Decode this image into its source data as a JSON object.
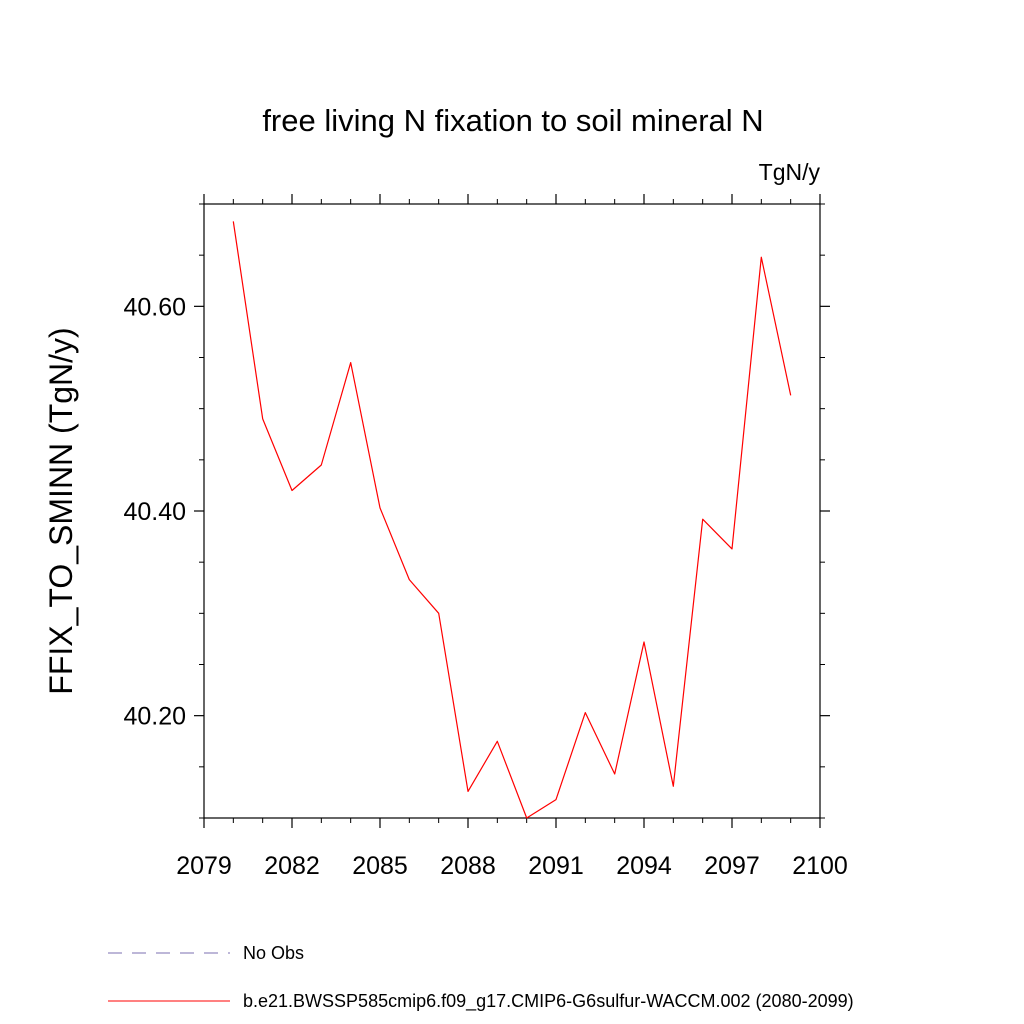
{
  "chart_data": {
    "type": "line",
    "title": "free living N fixation to soil mineral N",
    "units_label": "TgN/y",
    "ylabel": "FFIX_TO_SMINN  (TgN/y)",
    "xlabel": "",
    "xlim": [
      2079,
      2100
    ],
    "ylim": [
      40.1,
      40.7
    ],
    "x_ticks": [
      2079,
      2082,
      2085,
      2088,
      2091,
      2094,
      2097,
      2100
    ],
    "x_tick_labels": [
      "2079",
      "2082",
      "2085",
      "2088",
      "2091",
      "2094",
      "2097",
      "2100"
    ],
    "y_ticks": [
      40.2,
      40.4,
      40.6
    ],
    "y_tick_labels": [
      "40.20",
      "40.40",
      "40.60"
    ],
    "y_minor_step": 0.05,
    "x_minor_step": 1,
    "grid": false,
    "series": [
      {
        "name": "b.e21.BWSSP585cmip6.f09_g17.CMIP6-G6sulfur-WACCM.002 (2080-2099)",
        "color": "#ff0000",
        "style": "solid",
        "x": [
          2080,
          2081,
          2082,
          2083,
          2084,
          2085,
          2086,
          2087,
          2088,
          2089,
          2090,
          2091,
          2092,
          2093,
          2094,
          2095,
          2096,
          2097,
          2098,
          2099
        ],
        "y": [
          40.683,
          40.49,
          40.42,
          40.445,
          40.545,
          40.403,
          40.333,
          40.3,
          40.126,
          40.175,
          40.1,
          40.118,
          40.203,
          40.143,
          40.272,
          40.131,
          40.392,
          40.363,
          40.648,
          40.513
        ]
      }
    ],
    "legend": {
      "placement": "bottom",
      "entries": [
        {
          "label": "No Obs",
          "color": "#7b6fb0",
          "style": "dashed"
        },
        {
          "label": "b.e21.BWSSP585cmip6.f09_g17.CMIP6-G6sulfur-WACCM.002 (2080-2099)",
          "color": "#ff0000",
          "style": "solid"
        }
      ]
    }
  }
}
